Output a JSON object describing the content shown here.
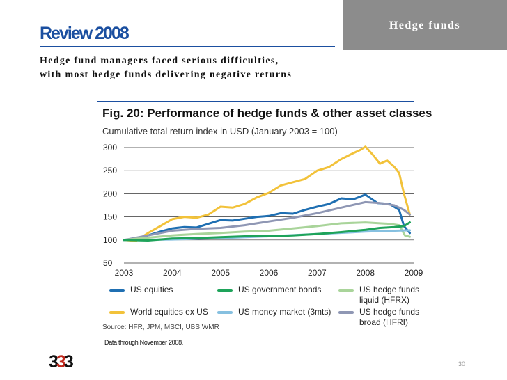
{
  "header": {
    "section_tab": "Hedge funds",
    "title": "Review 2008",
    "subtitle_line1": "Hedge fund managers faced serious difficulties,",
    "subtitle_line2": "with most hedge funds delivering negative returns"
  },
  "figure": {
    "title": "Fig. 20: Performance of hedge funds & other asset classes",
    "subtitle": "Cumulative total return index in USD (January 2003 = 100)",
    "source": "Source: HFR, JPM, MSCI, UBS WMR",
    "note": "Data through November 2008."
  },
  "footer": {
    "logo_part1": "3",
    "logo_part2": "3",
    "logo_part3": "3",
    "page_number": "30"
  },
  "colors": {
    "brand_blue": "#1b4fa0",
    "logo_red": "#c0281c",
    "tab_grey": "#8c8c8c"
  },
  "chart_data": {
    "type": "line",
    "title": "Fig. 20: Performance of hedge funds & other asset classes",
    "subtitle": "Cumulative total return index in USD (January 2003 = 100)",
    "xlabel": "",
    "ylabel": "",
    "xlim": [
      2003,
      2009
    ],
    "ylim": [
      50,
      300
    ],
    "x_ticks": [
      "2003",
      "2004",
      "2005",
      "2006",
      "2007",
      "2008",
      "2009"
    ],
    "y_ticks": [
      "300",
      "250",
      "200",
      "150",
      "100",
      "50"
    ],
    "grid": "horizontal",
    "legend_position": "bottom",
    "series": [
      {
        "name": "World equities ex US",
        "color": "#f2c23a",
        "x": [
          2003,
          2003.25,
          2003.5,
          2003.75,
          2004,
          2004.25,
          2004.5,
          2004.75,
          2005,
          2005.25,
          2005.5,
          2005.75,
          2006,
          2006.25,
          2006.5,
          2006.75,
          2007,
          2007.25,
          2007.5,
          2007.75,
          2007.9,
          2008,
          2008.15,
          2008.3,
          2008.45,
          2008.6,
          2008.7,
          2008.8,
          2008.92
        ],
        "y": [
          100,
          98,
          115,
          130,
          145,
          150,
          148,
          155,
          172,
          170,
          178,
          192,
          202,
          218,
          225,
          232,
          250,
          258,
          275,
          288,
          295,
          302,
          285,
          265,
          272,
          258,
          245,
          200,
          155
        ]
      },
      {
        "name": "US equities",
        "color": "#1f6fb2",
        "x": [
          2003,
          2003.25,
          2003.5,
          2003.75,
          2004,
          2004.25,
          2004.5,
          2004.75,
          2005,
          2005.25,
          2005.5,
          2005.75,
          2006,
          2006.25,
          2006.5,
          2006.75,
          2007,
          2007.25,
          2007.5,
          2007.75,
          2008,
          2008.25,
          2008.5,
          2008.7,
          2008.8,
          2008.92
        ],
        "y": [
          100,
          103,
          110,
          118,
          125,
          128,
          127,
          135,
          143,
          142,
          146,
          150,
          152,
          158,
          157,
          165,
          172,
          178,
          190,
          188,
          198,
          180,
          178,
          165,
          130,
          115
        ]
      },
      {
        "name": "US hedge funds broad (HFRI)",
        "color": "#8f97b4",
        "x": [
          2003,
          2003.5,
          2004,
          2004.5,
          2005,
          2005.5,
          2006,
          2006.5,
          2007,
          2007.5,
          2008,
          2008.3,
          2008.6,
          2008.8,
          2008.92
        ],
        "y": [
          100,
          110,
          120,
          124,
          126,
          132,
          140,
          148,
          158,
          170,
          182,
          180,
          175,
          165,
          155
        ]
      },
      {
        "name": "US hedge funds liquid (HFRX)",
        "color": "#a9d49a",
        "x": [
          2003,
          2003.5,
          2004,
          2004.5,
          2005,
          2005.5,
          2006,
          2006.5,
          2007,
          2007.5,
          2008,
          2008.3,
          2008.5,
          2008.7,
          2008.82,
          2008.92
        ],
        "y": [
          100,
          105,
          110,
          113,
          115,
          118,
          120,
          125,
          130,
          136,
          138,
          136,
          135,
          132,
          110,
          107
        ]
      },
      {
        "name": "US money market (3mts)",
        "color": "#86c0e0",
        "x": [
          2003,
          2004,
          2005,
          2006,
          2007,
          2008,
          2008.92
        ],
        "y": [
          100,
          101,
          104,
          108,
          113,
          118,
          121
        ]
      },
      {
        "name": "US government bonds",
        "color": "#1ea35a",
        "x": [
          2003,
          2003.5,
          2004,
          2004.5,
          2005,
          2005.5,
          2006,
          2006.5,
          2007,
          2007.5,
          2008,
          2008.3,
          2008.6,
          2008.8,
          2008.92
        ],
        "y": [
          100,
          99,
          103,
          104,
          106,
          108,
          108,
          110,
          113,
          117,
          122,
          126,
          128,
          130,
          138
        ]
      }
    ],
    "legend": [
      {
        "label_line1": "US equities",
        "label_line2": "",
        "color": "#1f6fb2"
      },
      {
        "label_line1": "US government bonds",
        "label_line2": "",
        "color": "#1ea35a"
      },
      {
        "label_line1": "US hedge funds",
        "label_line2": "liquid (HFRX)",
        "color": "#a9d49a"
      },
      {
        "label_line1": "World equities ex US",
        "label_line2": "",
        "color": "#f2c23a"
      },
      {
        "label_line1": "US money market (3mts)",
        "label_line2": "",
        "color": "#86c0e0"
      },
      {
        "label_line1": "US hedge funds",
        "label_line2": "broad (HFRI)",
        "color": "#8f97b4"
      }
    ]
  }
}
